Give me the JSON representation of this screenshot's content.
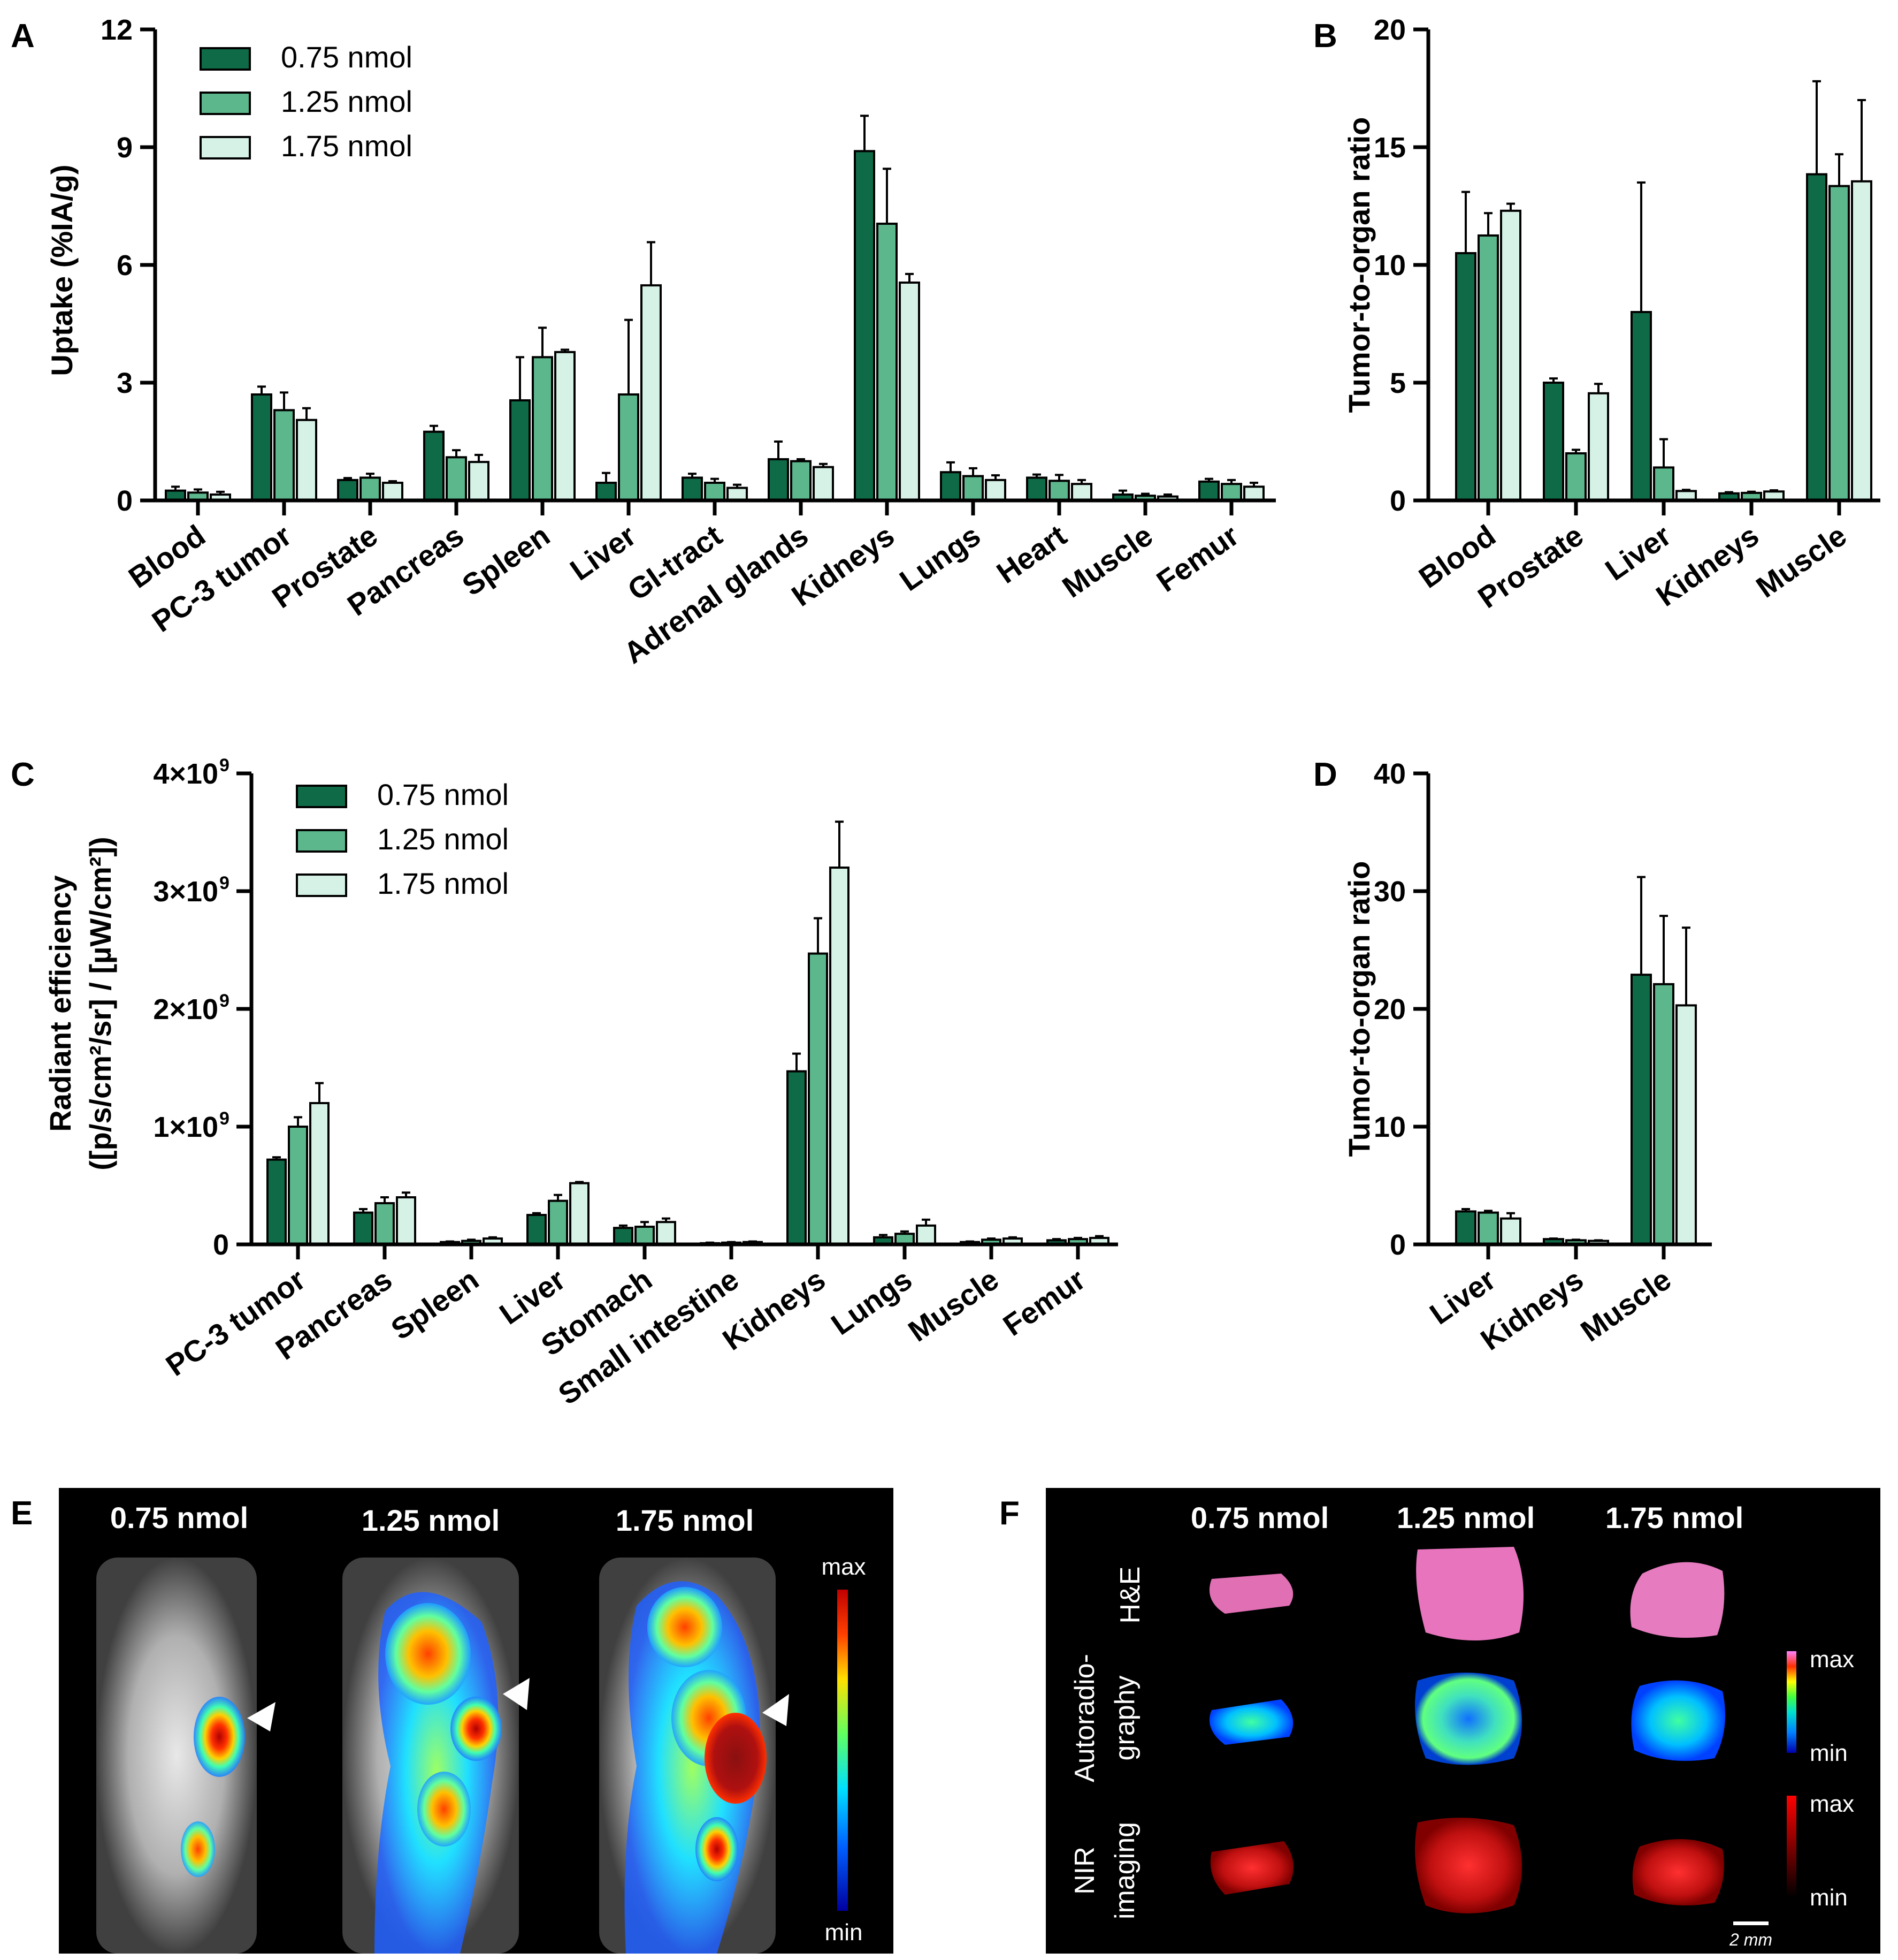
{
  "figure": {
    "panel_letters": {
      "A": "A",
      "B": "B",
      "C": "C",
      "D": "D",
      "E": "E",
      "F": "F"
    }
  },
  "colors": {
    "series": [
      "#0f6b47",
      "#5cb88c",
      "#d6f2e6"
    ],
    "axis": "#000000",
    "black": "#000000"
  },
  "chart_data": [
    {
      "id": "A",
      "type": "bar",
      "title": "",
      "xlabel": "",
      "ylabel": "Uptake (%IA/g)",
      "ylim": [
        0,
        12
      ],
      "yticks": [
        0,
        3,
        6,
        9,
        12
      ],
      "ytick_labels": [
        "0",
        "3",
        "6",
        "9",
        "12"
      ],
      "legend": "top-left",
      "categories": [
        "Blood",
        "PC-3 tumor",
        "Prostate",
        "Pancreas",
        "Spleen",
        "Liver",
        "GI-tract",
        "Adrenal glands",
        "Kidneys",
        "Lungs",
        "Heart",
        "Muscle",
        "Femur"
      ],
      "series": [
        {
          "name": "0.75 nmol",
          "values": [
            0.25,
            2.7,
            0.52,
            1.75,
            2.55,
            0.45,
            0.58,
            1.05,
            8.9,
            0.72,
            0.58,
            0.15,
            0.48
          ],
          "errors": [
            0.1,
            0.2,
            0.05,
            0.15,
            1.1,
            0.25,
            0.1,
            0.45,
            0.9,
            0.25,
            0.08,
            0.1,
            0.07
          ]
        },
        {
          "name": "1.25 nmol",
          "values": [
            0.2,
            2.3,
            0.58,
            1.1,
            3.65,
            2.7,
            0.45,
            1.0,
            7.05,
            0.62,
            0.5,
            0.12,
            0.42
          ],
          "errors": [
            0.08,
            0.45,
            0.1,
            0.18,
            0.75,
            1.9,
            0.1,
            0.05,
            1.4,
            0.2,
            0.15,
            0.05,
            0.1
          ]
        },
        {
          "name": "1.75 nmol",
          "values": [
            0.15,
            2.05,
            0.45,
            0.98,
            3.78,
            5.48,
            0.32,
            0.85,
            5.55,
            0.52,
            0.42,
            0.1,
            0.35
          ],
          "errors": [
            0.07,
            0.3,
            0.04,
            0.18,
            0.06,
            1.1,
            0.08,
            0.08,
            0.22,
            0.12,
            0.1,
            0.05,
            0.1
          ]
        }
      ]
    },
    {
      "id": "B",
      "type": "bar",
      "title": "",
      "xlabel": "",
      "ylabel": "Tumor-to-organ ratio",
      "ylim": [
        0,
        20
      ],
      "yticks": [
        0,
        5,
        10,
        15,
        20
      ],
      "ytick_labels": [
        "0",
        "5",
        "10",
        "15",
        "20"
      ],
      "categories": [
        "Blood",
        "Prostate",
        "Liver",
        "Kidneys",
        "Muscle"
      ],
      "series": [
        {
          "name": "0.75 nmol",
          "values": [
            10.5,
            5.0,
            8.0,
            0.3,
            13.85
          ],
          "errors": [
            2.6,
            0.18,
            5.5,
            0.05,
            3.95
          ]
        },
        {
          "name": "1.25 nmol",
          "values": [
            11.25,
            2.0,
            1.4,
            0.32,
            13.35
          ],
          "errors": [
            0.95,
            0.15,
            1.2,
            0.05,
            1.35
          ]
        },
        {
          "name": "1.75 nmol",
          "values": [
            12.3,
            4.55,
            0.4,
            0.38,
            13.55
          ],
          "errors": [
            0.3,
            0.4,
            0.05,
            0.05,
            3.45
          ]
        }
      ]
    },
    {
      "id": "C",
      "type": "bar",
      "title": "",
      "xlabel": "",
      "ylabel": "Radiant efficiency",
      "ylabel2": "([p/s/cm²/sr] / [µW/cm²])",
      "ylim": [
        0,
        4000000000
      ],
      "yticks": [
        0,
        1000000000,
        2000000000,
        3000000000,
        4000000000
      ],
      "ytick_labels": [
        "0",
        "1×10",
        "2×10",
        "3×10",
        "4×10"
      ],
      "ytick_exponent": "9",
      "legend": "top-left",
      "categories": [
        "PC-3 tumor",
        "Pancreas",
        "Spleen",
        "Liver",
        "Stomach",
        "Small intestine",
        "Kidneys",
        "Lungs",
        "Muscle",
        "Femur"
      ],
      "series": [
        {
          "name": "0.75 nmol",
          "values": [
            720000000,
            270000000,
            20000000,
            250000000,
            140000000,
            10000000,
            1470000000,
            60000000,
            20000000,
            35000000
          ],
          "errors": [
            20000000,
            30000000,
            5000000,
            15000000,
            20000000,
            5000000,
            150000000,
            20000000,
            5000000,
            10000000
          ]
        },
        {
          "name": "1.25 nmol",
          "values": [
            1000000000,
            350000000,
            30000000,
            370000000,
            150000000,
            15000000,
            2470000000,
            90000000,
            40000000,
            45000000
          ],
          "errors": [
            80000000,
            50000000,
            10000000,
            50000000,
            40000000,
            5000000,
            300000000,
            20000000,
            10000000,
            10000000
          ]
        },
        {
          "name": "1.75 nmol",
          "values": [
            1200000000,
            400000000,
            50000000,
            520000000,
            190000000,
            20000000,
            3200000000,
            160000000,
            50000000,
            55000000
          ],
          "errors": [
            170000000,
            40000000,
            10000000,
            10000000,
            30000000,
            5000000,
            390000000,
            50000000,
            10000000,
            15000000
          ]
        }
      ]
    },
    {
      "id": "D",
      "type": "bar",
      "title": "",
      "xlabel": "",
      "ylabel": "Tumor-to-organ ratio",
      "ylim": [
        0,
        40
      ],
      "yticks": [
        0,
        10,
        20,
        30,
        40
      ],
      "ytick_labels": [
        "0",
        "10",
        "20",
        "30",
        "40"
      ],
      "categories": [
        "Liver",
        "Kidneys",
        "Muscle"
      ],
      "series": [
        {
          "name": "0.75 nmol",
          "values": [
            2.8,
            0.45,
            22.9
          ],
          "errors": [
            0.2,
            0.05,
            8.3
          ]
        },
        {
          "name": "1.25 nmol",
          "values": [
            2.7,
            0.35,
            22.1
          ],
          "errors": [
            0.15,
            0.05,
            5.8
          ]
        },
        {
          "name": "1.75 nmol",
          "values": [
            2.2,
            0.3,
            20.3
          ],
          "errors": [
            0.45,
            0.05,
            6.6
          ]
        }
      ]
    }
  ],
  "panel_e": {
    "headers": [
      "0.75 nmol",
      "1.25 nmol",
      "1.75 nmol"
    ],
    "colorbar_max": "max",
    "colorbar_min": "min"
  },
  "panel_f": {
    "headers": [
      "0.75 nmol",
      "1.25 nmol",
      "1.75 nmol"
    ],
    "row_labels": {
      "he": "H&E",
      "auto_1": "Autoradio-",
      "auto_2": "graphy",
      "nir_1": "NIR",
      "nir_2": "imaging"
    },
    "colorbar_max": "max",
    "colorbar_min": "min",
    "scale_bar": "2 mm"
  }
}
